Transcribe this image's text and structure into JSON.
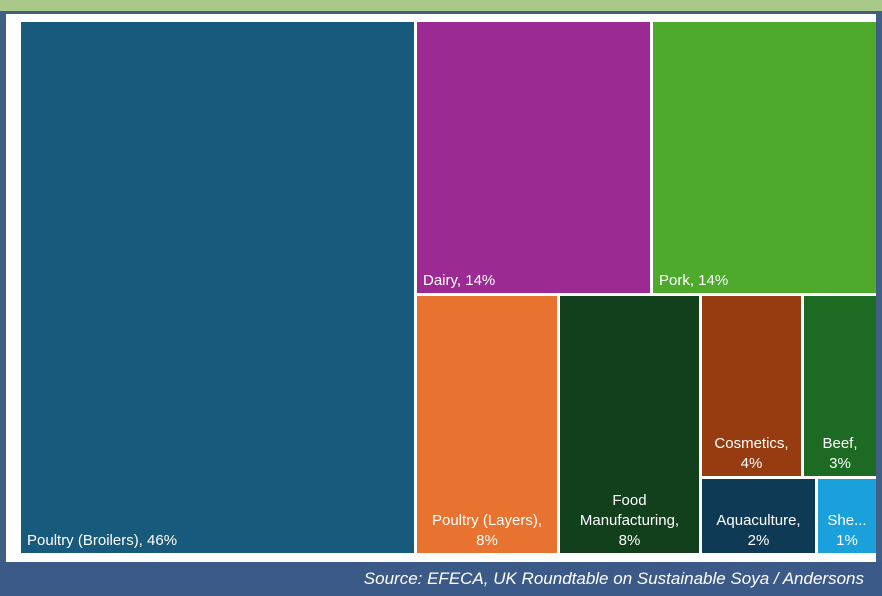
{
  "source_text": "Source: EFECA, UK Roundtable on Sustainable Soya / Andersons",
  "chart_data": {
    "type": "treemap",
    "items": [
      {
        "label": "Poultry (Broilers), 46%",
        "lines": [
          "Poultry (Broilers), 46%"
        ],
        "value": 46,
        "color": "#185a7c"
      },
      {
        "label": "Dairy, 14%",
        "lines": [
          "Dairy, 14%"
        ],
        "value": 14,
        "color": "#9b2b93"
      },
      {
        "label": "Pork, 14%",
        "lines": [
          "Pork, 14%"
        ],
        "value": 14,
        "color": "#4daa2c"
      },
      {
        "label": "Poultry (Layers), 8%",
        "lines": [
          "Poultry (Layers),",
          "8%"
        ],
        "value": 8,
        "color": "#e8722f"
      },
      {
        "label": "Food Manufacturing, 8%",
        "lines": [
          "Food",
          "Manufacturing,",
          "8%"
        ],
        "value": 8,
        "color": "#12401c"
      },
      {
        "label": "Cosmetics, 4%",
        "lines": [
          "Cosmetics,",
          "4%"
        ],
        "value": 4,
        "color": "#973c10"
      },
      {
        "label": "Beef, 3%",
        "lines": [
          "Beef,",
          "3%"
        ],
        "value": 3,
        "color": "#1d6a22"
      },
      {
        "label": "Aquaculture, 2%",
        "lines": [
          "Aquaculture,",
          "2%"
        ],
        "value": 2,
        "color": "#0f3a55"
      },
      {
        "label": "She... 1%",
        "lines": [
          "She...",
          "1%"
        ],
        "value": 1,
        "color": "#1aa0da"
      }
    ]
  }
}
